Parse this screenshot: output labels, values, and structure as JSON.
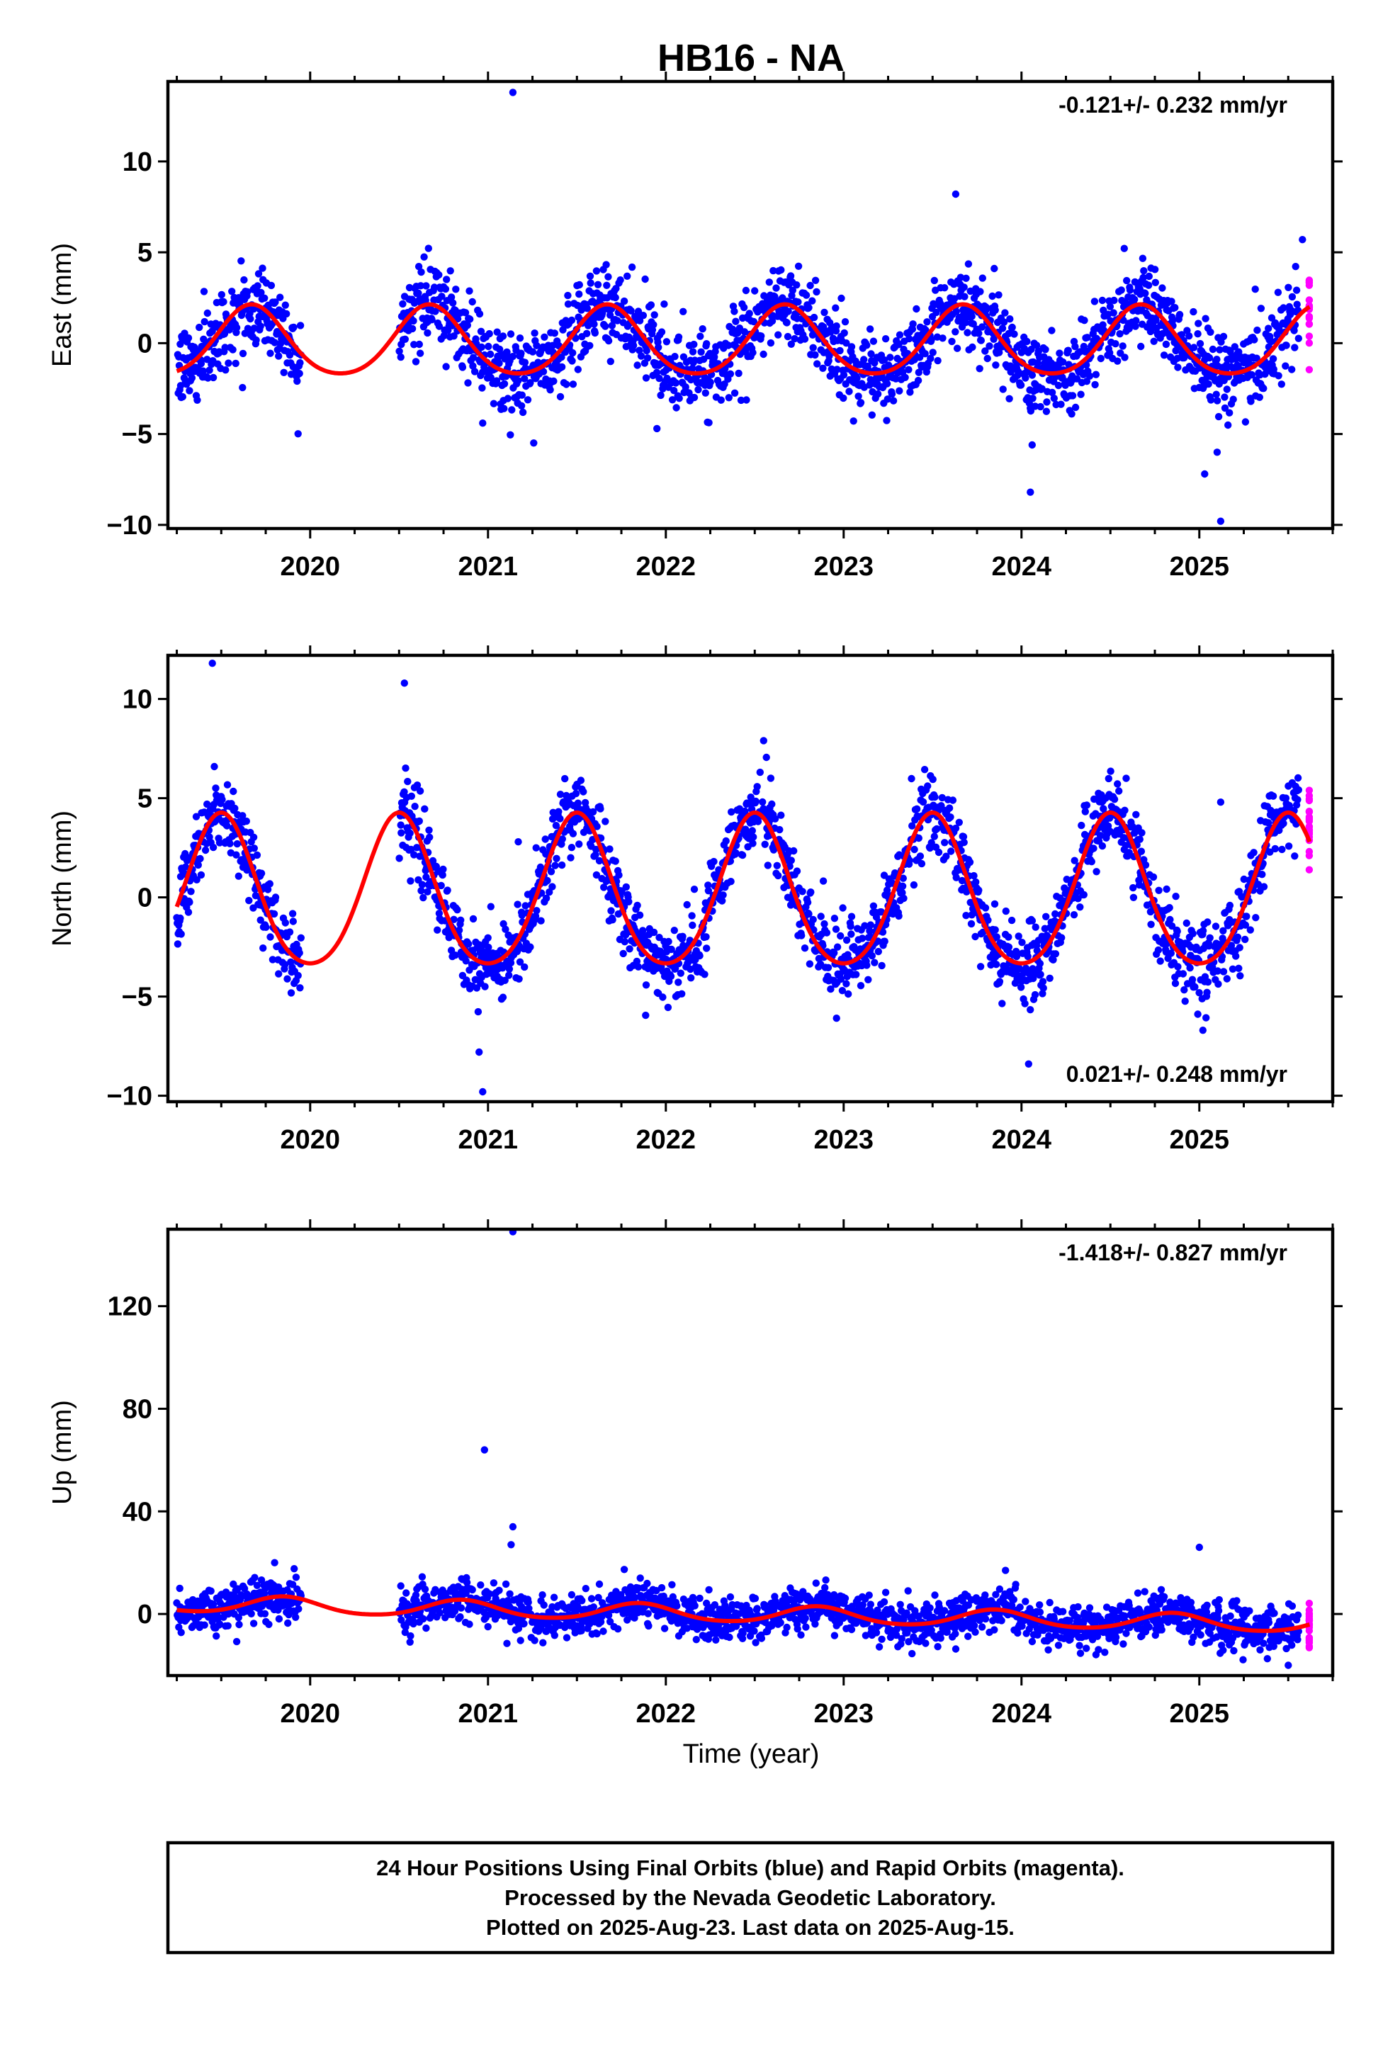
{
  "chart_data": {
    "type": "scatter",
    "title": "HB16 - NA",
    "xlabel": "Time (year)",
    "x_tick_labels": [
      "2020",
      "2021",
      "2022",
      "2023",
      "2024",
      "2025"
    ],
    "x_ticks": [
      2020,
      2021,
      2022,
      2023,
      2024,
      2025
    ],
    "xlim": [
      2019.2,
      2025.75
    ],
    "panels": [
      {
        "id": "east",
        "ylabel": "East (mm)",
        "ylim": [
          -10.2,
          14.4
        ],
        "y_ticks": [
          -10,
          -5,
          0,
          5,
          10
        ],
        "y_tick_labels": [
          "−10",
          "−5",
          "0",
          "5",
          "10"
        ],
        "rate_text": "-0.121+/- 0.232 mm/yr",
        "rate_position": "top-right",
        "seasonal_amplitude": 1.9,
        "seasonal_phase_peak": 0.67,
        "noise_sd": 1.1,
        "trend_offset": 0,
        "series": [
          {
            "name": "Final Orbits",
            "color": "#0000ff"
          },
          {
            "name": "Rapid Orbits",
            "color": "#ff00ff"
          },
          {
            "name": "model",
            "color": "#ff0000"
          }
        ],
        "outliers": [
          [
            2021.14,
            13.8
          ],
          [
            2023.63,
            8.2
          ],
          [
            2024.05,
            -8.2
          ],
          [
            2024.06,
            -5.6
          ],
          [
            2025.03,
            -7.2
          ],
          [
            2025.12,
            -9.8
          ],
          [
            2025.1,
            -6.0
          ],
          [
            2020.97,
            -4.4
          ],
          [
            2021.95,
            -4.7
          ],
          [
            2025.58,
            5.7
          ]
        ]
      },
      {
        "id": "north",
        "ylabel": "North (mm)",
        "ylim": [
          -10.3,
          12.2
        ],
        "y_ticks": [
          -10,
          -5,
          0,
          5,
          10
        ],
        "y_tick_labels": [
          "−10",
          "−5",
          "0",
          "5",
          "10"
        ],
        "rate_text": "0.021+/- 0.248 mm/yr",
        "rate_position": "bottom-right",
        "seasonal_amplitude": 3.8,
        "seasonal_phase_peak": 0.5,
        "noise_sd": 1.0,
        "trend_offset": 1.2,
        "series": [
          {
            "name": "Final Orbits",
            "color": "#0000ff"
          },
          {
            "name": "Rapid Orbits",
            "color": "#ff00ff"
          },
          {
            "name": "model",
            "color": "#ff0000"
          }
        ],
        "outliers": [
          [
            2019.45,
            11.8
          ],
          [
            2020.53,
            10.8
          ],
          [
            2020.95,
            -7.8
          ],
          [
            2020.97,
            -9.8
          ],
          [
            2021.17,
            2.8
          ],
          [
            2024.04,
            -8.4
          ],
          [
            2025.02,
            -6.7
          ],
          [
            2025.12,
            4.8
          ],
          [
            2022.55,
            7.9
          ]
        ]
      },
      {
        "id": "up",
        "ylabel": "Up (mm)",
        "ylim": [
          -24,
          150
        ],
        "y_ticks": [
          0,
          40,
          80,
          120
        ],
        "y_tick_labels": [
          "0",
          "40",
          "80",
          "120"
        ],
        "rate_text": "-1.418+/- 0.827 mm/yr",
        "rate_position": "top-right",
        "seasonal_amplitude": 3.2,
        "seasonal_phase_peak": 0.85,
        "noise_sd": 4.0,
        "trend_offset": 4.0,
        "series": [
          {
            "name": "Final Orbits",
            "color": "#0000ff"
          },
          {
            "name": "Rapid Orbits",
            "color": "#ff00ff"
          },
          {
            "name": "model",
            "color": "#ff0000"
          }
        ],
        "outliers": [
          [
            2021.14,
            149
          ],
          [
            2020.98,
            64
          ],
          [
            2021.14,
            34
          ],
          [
            2021.13,
            27
          ],
          [
            2025.0,
            26
          ],
          [
            2023.91,
            17
          ],
          [
            2019.8,
            20
          ],
          [
            2025.5,
            -20
          ]
        ]
      }
    ],
    "data_start": 2019.25,
    "gap": [
      2019.95,
      2020.5
    ],
    "final_end": 2025.55,
    "rapid_start": 2025.56,
    "data_end": 2025.62
  },
  "caption": {
    "line1": "24 Hour Positions Using Final Orbits (blue) and Rapid Orbits (magenta).",
    "line2": "Processed by the Nevada Geodetic Laboratory.",
    "line3": "Plotted on 2025-Aug-23. Last data on 2025-Aug-15."
  }
}
